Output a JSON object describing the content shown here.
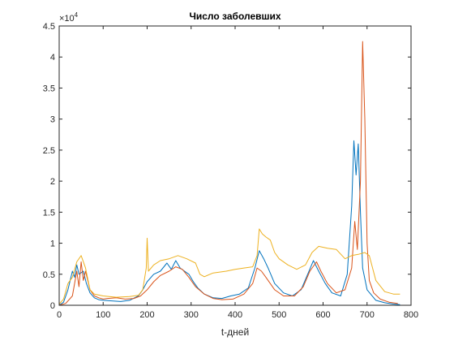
{
  "chart_data": {
    "type": "line",
    "title": "Число заболевших",
    "xlabel": "t-дней",
    "ylabel": "",
    "xlim": [
      0,
      800
    ],
    "ylim": [
      0,
      45000
    ],
    "x_ticks": [
      0,
      100,
      200,
      300,
      400,
      500,
      600,
      700,
      800
    ],
    "y_ticks": [
      0,
      0.5,
      1,
      1.5,
      2,
      2.5,
      3,
      3.5,
      4,
      4.5
    ],
    "y_exponent_label": "×10",
    "y_exponent_power": "4",
    "grid": false,
    "box": true,
    "series": [
      {
        "color": "#0072BD",
        "points": [
          [
            0,
            0
          ],
          [
            10,
            500
          ],
          [
            20,
            2500
          ],
          [
            30,
            5500
          ],
          [
            35,
            4500
          ],
          [
            40,
            6500
          ],
          [
            45,
            5000
          ],
          [
            55,
            5500
          ],
          [
            62,
            3500
          ],
          [
            70,
            2000
          ],
          [
            80,
            1200
          ],
          [
            90,
            900
          ],
          [
            100,
            800
          ],
          [
            120,
            700
          ],
          [
            140,
            600
          ],
          [
            160,
            800
          ],
          [
            180,
            1500
          ],
          [
            190,
            2500
          ],
          [
            200,
            3800
          ],
          [
            215,
            5000
          ],
          [
            230,
            5500
          ],
          [
            245,
            6800
          ],
          [
            255,
            5800
          ],
          [
            265,
            7200
          ],
          [
            275,
            6000
          ],
          [
            285,
            5500
          ],
          [
            295,
            5000
          ],
          [
            305,
            3800
          ],
          [
            315,
            2800
          ],
          [
            330,
            1800
          ],
          [
            350,
            1200
          ],
          [
            370,
            1100
          ],
          [
            390,
            1500
          ],
          [
            410,
            1800
          ],
          [
            430,
            2800
          ],
          [
            445,
            6000
          ],
          [
            455,
            8800
          ],
          [
            465,
            7500
          ],
          [
            475,
            6000
          ],
          [
            490,
            3500
          ],
          [
            510,
            2000
          ],
          [
            530,
            1500
          ],
          [
            550,
            2500
          ],
          [
            565,
            5000
          ],
          [
            578,
            7200
          ],
          [
            590,
            5500
          ],
          [
            605,
            3500
          ],
          [
            620,
            2000
          ],
          [
            640,
            1500
          ],
          [
            655,
            5000
          ],
          [
            665,
            16000
          ],
          [
            670,
            26500
          ],
          [
            675,
            21000
          ],
          [
            680,
            26000
          ],
          [
            685,
            15000
          ],
          [
            690,
            6000
          ],
          [
            700,
            2500
          ],
          [
            720,
            800
          ],
          [
            740,
            400
          ],
          [
            760,
            200
          ],
          [
            775,
            100
          ]
        ]
      },
      {
        "color": "#D95319",
        "points": [
          [
            0,
            0
          ],
          [
            15,
            300
          ],
          [
            30,
            1500
          ],
          [
            40,
            5500
          ],
          [
            45,
            3000
          ],
          [
            50,
            7000
          ],
          [
            55,
            4000
          ],
          [
            60,
            5500
          ],
          [
            70,
            2500
          ],
          [
            80,
            1500
          ],
          [
            90,
            1200
          ],
          [
            100,
            1000
          ],
          [
            110,
            1100
          ],
          [
            130,
            1200
          ],
          [
            150,
            1000
          ],
          [
            170,
            1100
          ],
          [
            185,
            1500
          ],
          [
            200,
            2500
          ],
          [
            215,
            3800
          ],
          [
            230,
            4800
          ],
          [
            250,
            5500
          ],
          [
            265,
            6200
          ],
          [
            280,
            5800
          ],
          [
            295,
            4500
          ],
          [
            310,
            3000
          ],
          [
            330,
            1800
          ],
          [
            350,
            1100
          ],
          [
            370,
            900
          ],
          [
            395,
            1000
          ],
          [
            420,
            1800
          ],
          [
            440,
            3500
          ],
          [
            450,
            6000
          ],
          [
            460,
            5500
          ],
          [
            470,
            4500
          ],
          [
            490,
            2500
          ],
          [
            510,
            1500
          ],
          [
            535,
            1500
          ],
          [
            555,
            3000
          ],
          [
            570,
            5500
          ],
          [
            585,
            7000
          ],
          [
            595,
            5500
          ],
          [
            610,
            3500
          ],
          [
            630,
            2000
          ],
          [
            650,
            2500
          ],
          [
            665,
            6000
          ],
          [
            672,
            13500
          ],
          [
            678,
            9000
          ],
          [
            685,
            20000
          ],
          [
            690,
            42500
          ],
          [
            695,
            30000
          ],
          [
            700,
            10000
          ],
          [
            705,
            4000
          ],
          [
            715,
            2000
          ],
          [
            730,
            1000
          ],
          [
            750,
            500
          ],
          [
            770,
            300
          ]
        ]
      },
      {
        "color": "#EDB120",
        "points": [
          [
            0,
            200
          ],
          [
            10,
            1000
          ],
          [
            20,
            3500
          ],
          [
            30,
            4500
          ],
          [
            40,
            7000
          ],
          [
            50,
            8000
          ],
          [
            60,
            6000
          ],
          [
            70,
            2500
          ],
          [
            80,
            1800
          ],
          [
            100,
            1500
          ],
          [
            130,
            1300
          ],
          [
            160,
            1400
          ],
          [
            180,
            1600
          ],
          [
            190,
            2500
          ],
          [
            198,
            6000
          ],
          [
            200,
            10800
          ],
          [
            203,
            5500
          ],
          [
            215,
            6500
          ],
          [
            230,
            7200
          ],
          [
            250,
            7500
          ],
          [
            270,
            8000
          ],
          [
            290,
            7500
          ],
          [
            310,
            6800
          ],
          [
            320,
            5000
          ],
          [
            330,
            4600
          ],
          [
            350,
            5200
          ],
          [
            380,
            5500
          ],
          [
            400,
            5800
          ],
          [
            420,
            6000
          ],
          [
            440,
            6200
          ],
          [
            450,
            8000
          ],
          [
            455,
            12300
          ],
          [
            462,
            11500
          ],
          [
            470,
            11000
          ],
          [
            480,
            10500
          ],
          [
            490,
            8500
          ],
          [
            500,
            7500
          ],
          [
            520,
            6500
          ],
          [
            540,
            5800
          ],
          [
            560,
            6500
          ],
          [
            575,
            8500
          ],
          [
            590,
            9500
          ],
          [
            610,
            9200
          ],
          [
            630,
            9000
          ],
          [
            650,
            7500
          ],
          [
            665,
            8000
          ],
          [
            680,
            8200
          ],
          [
            695,
            8500
          ],
          [
            705,
            8000
          ],
          [
            720,
            4000
          ],
          [
            740,
            2200
          ],
          [
            760,
            1800
          ],
          [
            775,
            1800
          ]
        ]
      }
    ]
  }
}
